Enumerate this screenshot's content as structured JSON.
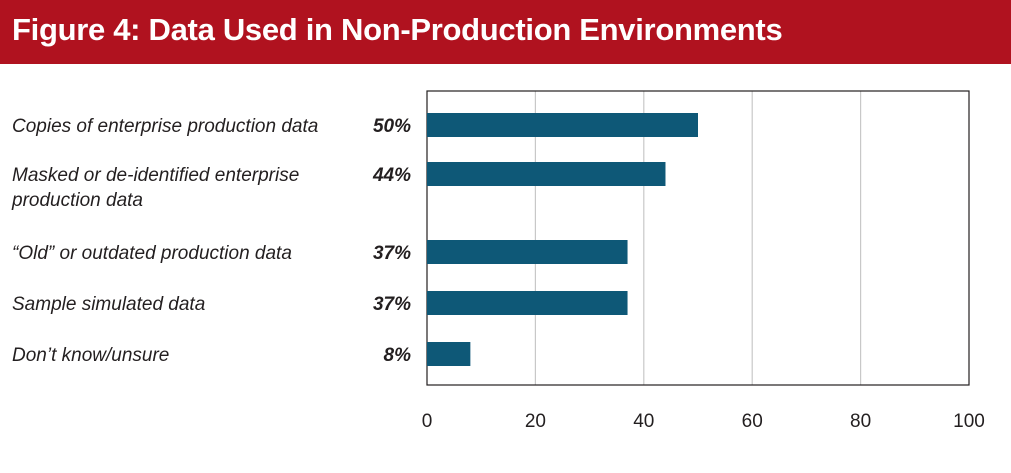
{
  "header": {
    "title": "Figure 4:  Data Used in Non-Production Environments"
  },
  "colors": {
    "header_bg": "#b0121f",
    "bar": "#0e5877",
    "grid": "#c8c8c8",
    "frame": "#231f20"
  },
  "chart_data": {
    "type": "bar",
    "orientation": "horizontal",
    "categories": [
      [
        "Copies of enterprise production data"
      ],
      [
        "Masked or de-identified enterprise",
        "production data"
      ],
      [
        "“Old” or outdated production data"
      ],
      [
        "Sample simulated data"
      ],
      [
        "Don’t know/unsure"
      ]
    ],
    "values": [
      50,
      44,
      37,
      37,
      8
    ],
    "value_labels": [
      "50%",
      "44%",
      "37%",
      "37%",
      "8%"
    ],
    "xlim": [
      0,
      100
    ],
    "xticks": [
      "0",
      "20",
      "40",
      "60",
      "80",
      "100"
    ],
    "grid": true
  }
}
